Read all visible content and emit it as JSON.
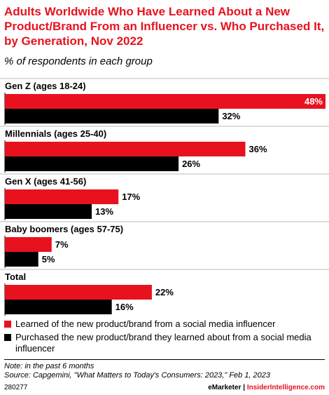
{
  "title": "Adults Worldwide Who Have Learned About a New Product/Brand From an Influencer vs. Who Purchased It, by Generation, Nov 2022",
  "subtitle": "% of respondents in each group",
  "colors": {
    "learned": "#e8121f",
    "purchased": "#000000",
    "accent": "#e8121f"
  },
  "chart_data": {
    "type": "bar",
    "orientation": "horizontal",
    "categories": [
      "Gen Z (ages 18-24)",
      "Millennials (ages 25-40)",
      "Gen X (ages 41-56)",
      "Baby boomers (ages 57-75)",
      "Total"
    ],
    "series": [
      {
        "name": "Learned of the new product/brand from a social media influencer",
        "values": [
          48,
          36,
          17,
          7,
          22
        ]
      },
      {
        "name": "Purchased the new product/brand they learned about from a social media influencer",
        "values": [
          32,
          26,
          13,
          5,
          16
        ]
      }
    ],
    "value_suffix": "%",
    "xlim": [
      0,
      48
    ],
    "grid": false,
    "legend_position": "bottom"
  },
  "legend": {
    "learned": "Learned of the new product/brand from a social media influencer",
    "purchased": "Purchased the new product/brand they learned about from a social media influencer"
  },
  "note": "Note: in the past 6 months",
  "source": "Source: Capgemini, \"What Matters to Today's Consumers: 2023,\" Feb 1, 2023",
  "chart_id": "280277",
  "brand": {
    "emarketer": "eMarketer",
    "separator": " | ",
    "insider": "InsiderIntelligence.com"
  }
}
